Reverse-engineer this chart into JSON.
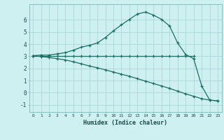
{
  "bg_color": "#cff0f0",
  "grid_color": "#aad8d8",
  "line_color": "#1a6e64",
  "xlabel": "Humidex (Indice chaleur)",
  "xlim": [
    -0.5,
    23.5
  ],
  "ylim": [
    -1.6,
    7.3
  ],
  "yticks": [
    -1,
    0,
    1,
    2,
    3,
    4,
    5,
    6
  ],
  "xticks": [
    0,
    1,
    2,
    3,
    4,
    5,
    6,
    7,
    8,
    9,
    10,
    11,
    12,
    13,
    14,
    15,
    16,
    17,
    18,
    19,
    20,
    21,
    22,
    23
  ],
  "line1_x": [
    0,
    1,
    2,
    3,
    4,
    5,
    6,
    7,
    8,
    9,
    10,
    11,
    12,
    13,
    14,
    15,
    16,
    17,
    18,
    19,
    20,
    21,
    22,
    23
  ],
  "line1_y": [
    3.05,
    3.1,
    3.1,
    3.2,
    3.3,
    3.5,
    3.75,
    3.9,
    4.1,
    4.55,
    5.1,
    5.6,
    6.05,
    6.5,
    6.65,
    6.4,
    6.05,
    5.5,
    4.1,
    3.15,
    2.8,
    0.55,
    -0.62,
    -0.68
  ],
  "line2_x": [
    0,
    1,
    2,
    3,
    4,
    5,
    6,
    7,
    8,
    9,
    10,
    11,
    12,
    13,
    14,
    15,
    16,
    17,
    18,
    19,
    20
  ],
  "line2_y": [
    3.05,
    3.05,
    3.05,
    3.05,
    3.05,
    3.05,
    3.05,
    3.05,
    3.05,
    3.05,
    3.05,
    3.05,
    3.05,
    3.05,
    3.05,
    3.05,
    3.05,
    3.05,
    3.05,
    3.05,
    3.05
  ],
  "line3_x": [
    0,
    1,
    2,
    3,
    4,
    5,
    6,
    7,
    8,
    9,
    10,
    11,
    12,
    13,
    14,
    15,
    16,
    17,
    18,
    19,
    20,
    21,
    22,
    23
  ],
  "line3_y": [
    3.05,
    2.98,
    2.9,
    2.8,
    2.7,
    2.55,
    2.38,
    2.2,
    2.05,
    1.88,
    1.7,
    1.52,
    1.35,
    1.15,
    0.95,
    0.75,
    0.55,
    0.35,
    0.12,
    -0.1,
    -0.3,
    -0.5,
    -0.62,
    -0.68
  ]
}
